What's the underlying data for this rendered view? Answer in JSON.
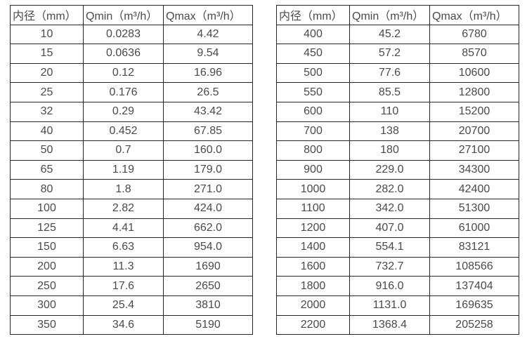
{
  "colors": {
    "background": "#ffffff",
    "text": "#4a4a4a",
    "border": "#262626"
  },
  "left_table": {
    "headers": [
      "内径（mm）",
      "Qmin（m³/h）",
      "Qmax（m³/h）"
    ],
    "rows": [
      [
        "10",
        "0.0283",
        "4.42"
      ],
      [
        "15",
        "0.0636",
        "9.54"
      ],
      [
        "20",
        "0.12",
        "16.96"
      ],
      [
        "25",
        "0.176",
        "26.5"
      ],
      [
        "32",
        "0.29",
        "43.42"
      ],
      [
        "40",
        "0.452",
        "67.85"
      ],
      [
        "50",
        "0.7",
        "160.0"
      ],
      [
        "65",
        "1.19",
        "179.0"
      ],
      [
        "80",
        "1.8",
        "271.0"
      ],
      [
        "100",
        "2.82",
        "424.0"
      ],
      [
        "125",
        "4.41",
        "662.0"
      ],
      [
        "150",
        "6.63",
        "954.0"
      ],
      [
        "200",
        "11.3",
        "1690"
      ],
      [
        "250",
        "17.6",
        "2650"
      ],
      [
        "300",
        "25.4",
        "3810"
      ],
      [
        "350",
        "34.6",
        "5190"
      ]
    ]
  },
  "right_table": {
    "headers": [
      "内径（mm）",
      "Qmin（m³/h）",
      "Qmax（m³/h）"
    ],
    "rows": [
      [
        "400",
        "45.2",
        "6780"
      ],
      [
        "450",
        "57.2",
        "8570"
      ],
      [
        "500",
        "77.6",
        "10600"
      ],
      [
        "550",
        "85.5",
        "12800"
      ],
      [
        "600",
        "110",
        "15200"
      ],
      [
        "700",
        "138",
        "20700"
      ],
      [
        "800",
        "180",
        "27100"
      ],
      [
        "900",
        "229.0",
        "34300"
      ],
      [
        "1000",
        "282.0",
        "42400"
      ],
      [
        "1100",
        "342.0",
        "51300"
      ],
      [
        "1200",
        "407.0",
        "61000"
      ],
      [
        "1400",
        "554.1",
        "83121"
      ],
      [
        "1600",
        "732.7",
        "108566"
      ],
      [
        "1800",
        "916.0",
        "137404"
      ],
      [
        "2000",
        "1131.0",
        "169635"
      ],
      [
        "2200",
        "1368.4",
        "205258"
      ]
    ]
  }
}
